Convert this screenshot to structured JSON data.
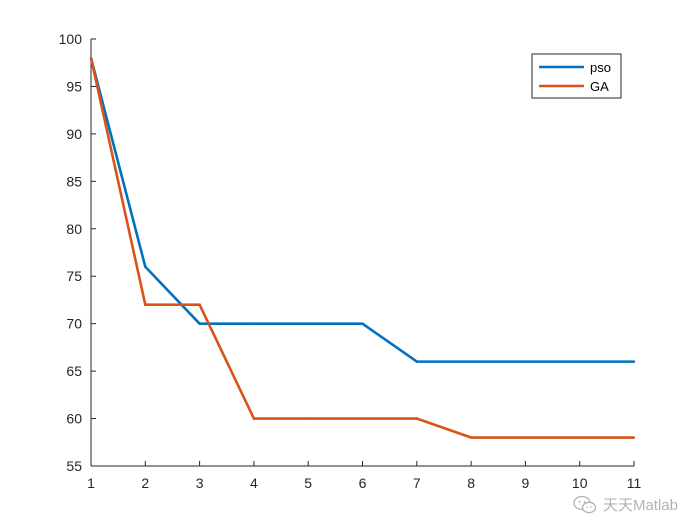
{
  "chart_data": {
    "type": "line",
    "x": [
      1,
      2,
      3,
      4,
      5,
      6,
      7,
      8,
      9,
      10,
      11
    ],
    "series": [
      {
        "name": "pso",
        "color": "#0072BD",
        "values": [
          98,
          76,
          70,
          70,
          70,
          70,
          66,
          66,
          66,
          66,
          66
        ]
      },
      {
        "name": "GA",
        "color": "#D95319",
        "values": [
          98,
          72,
          72,
          60,
          60,
          60,
          60,
          58,
          58,
          58,
          58
        ]
      }
    ],
    "xlim": [
      1,
      11
    ],
    "ylim": [
      55,
      100
    ],
    "xticks": [
      1,
      2,
      3,
      4,
      5,
      6,
      7,
      8,
      9,
      10,
      11
    ],
    "yticks": [
      55,
      60,
      65,
      70,
      75,
      80,
      85,
      90,
      95,
      100
    ],
    "grid": false,
    "legend_position": "top-right"
  },
  "watermark": {
    "text": "天天Matlab",
    "icon": "wechat-icon"
  }
}
